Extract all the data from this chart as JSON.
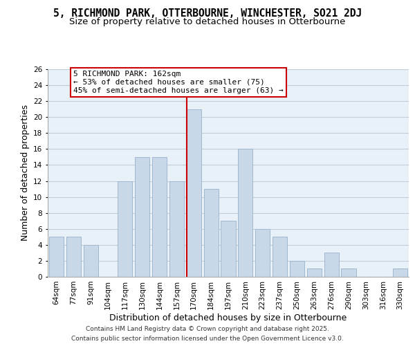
{
  "title": "5, RICHMOND PARK, OTTERBOURNE, WINCHESTER, SO21 2DJ",
  "subtitle": "Size of property relative to detached houses in Otterbourne",
  "bar_labels": [
    "64sqm",
    "77sqm",
    "91sqm",
    "104sqm",
    "117sqm",
    "130sqm",
    "144sqm",
    "157sqm",
    "170sqm",
    "184sqm",
    "197sqm",
    "210sqm",
    "223sqm",
    "237sqm",
    "250sqm",
    "263sqm",
    "276sqm",
    "290sqm",
    "303sqm",
    "316sqm",
    "330sqm"
  ],
  "bar_values": [
    5,
    5,
    4,
    0,
    12,
    15,
    15,
    12,
    21,
    11,
    7,
    16,
    6,
    5,
    2,
    1,
    3,
    1,
    0,
    0,
    1
  ],
  "bar_color": "#c8d8e8",
  "bar_edge_color": "#a0b8d0",
  "red_line_bar_index": 8,
  "highlight_color": "#cc0000",
  "ylabel": "Number of detached properties",
  "xlabel": "Distribution of detached houses by size in Otterbourne",
  "ylim": [
    0,
    26
  ],
  "yticks": [
    0,
    2,
    4,
    6,
    8,
    10,
    12,
    14,
    16,
    18,
    20,
    22,
    24,
    26
  ],
  "annotation_title": "5 RICHMOND PARK: 162sqm",
  "annotation_line1": "← 53% of detached houses are smaller (75)",
  "annotation_line2": "45% of semi-detached houses are larger (63) →",
  "footer1": "Contains HM Land Registry data © Crown copyright and database right 2025.",
  "footer2": "Contains public sector information licensed under the Open Government Licence v3.0.",
  "background_color": "#ffffff",
  "plot_bg_color": "#e8f0f8",
  "grid_color": "#c0ccd8",
  "title_fontsize": 10.5,
  "subtitle_fontsize": 9.5,
  "axis_label_fontsize": 9,
  "tick_fontsize": 7.5,
  "annotation_fontsize": 8,
  "footer_fontsize": 6.5
}
